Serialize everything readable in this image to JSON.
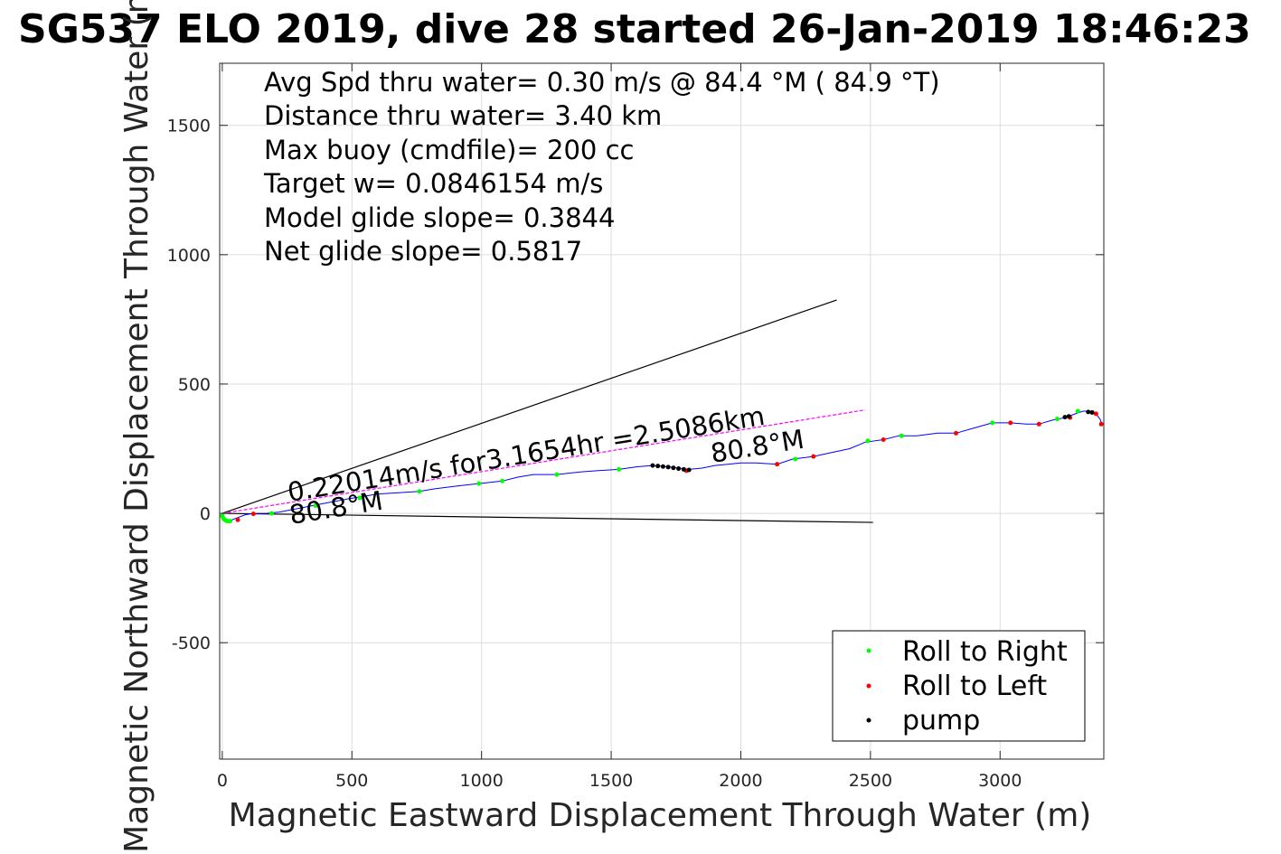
{
  "title": "SG537 ELO 2019, dive 28 started 26-Jan-2019 18:46:23",
  "chart_data": {
    "type": "line",
    "xlabel": "Magnetic Eastward Displacement Through Water (m)",
    "ylabel": "Magnetic Northward Displacement Through Water (m)",
    "xlim": [
      -10,
      3400
    ],
    "ylim": [
      -950,
      1740
    ],
    "xticks": [
      0,
      500,
      1000,
      1500,
      2000,
      2500,
      3000
    ],
    "xtick_labels": [
      "0",
      "500",
      "1000",
      "1500",
      "2000",
      "2500",
      "3000"
    ],
    "yticks": [
      -500,
      0,
      500,
      1000,
      1500
    ],
    "ytick_labels": [
      "-500",
      "0",
      "500",
      "1000",
      "1500"
    ],
    "grid": true,
    "legend_position": "bottom-right",
    "annotations": [
      "Avg Spd thru water=  0.30 m/s @  84.4 °M ( 84.9 °T)",
      "Distance thru water=  3.40 km",
      "Max buoy (cmdfile)= 200 cc",
      "Target w= 0.0846154 m/s",
      "Model glide slope= 0.3844",
      "Net glide slope= 0.5817"
    ],
    "current_label": "0.22014m/s for3.1654hr =2.5086km",
    "heading_labels": [
      "80.8°M",
      "80.8°M"
    ],
    "reference_lines": [
      {
        "name": "upper-heading-line",
        "x": [
          0,
          2370
        ],
        "y": [
          0,
          825
        ],
        "color": "#000000"
      },
      {
        "name": "lower-heading-line",
        "x": [
          0,
          2510
        ],
        "y": [
          0,
          -35
        ],
        "color": "#000000"
      },
      {
        "name": "current-vector-line",
        "x": [
          0,
          2480
        ],
        "y": [
          0,
          400
        ],
        "color": "#ff00ff"
      }
    ],
    "track": {
      "color": "#0000ff",
      "x": [
        0,
        10,
        25,
        50,
        90,
        120,
        170,
        220,
        300,
        400,
        480,
        540,
        600,
        680,
        760,
        820,
        900,
        990,
        1080,
        1140,
        1200,
        1290,
        1380,
        1450,
        1530,
        1600,
        1660,
        1720,
        1760,
        1800,
        1850,
        1900,
        1950,
        2000,
        2060,
        2140,
        2200,
        2280,
        2350,
        2420,
        2480,
        2550,
        2610,
        2680,
        2760,
        2830,
        2900,
        2970,
        3040,
        3100,
        3150,
        3200,
        3250,
        3290,
        3320,
        3350,
        3370,
        3385,
        3395
      ],
      "y": [
        -5,
        -25,
        -30,
        -20,
        -5,
        0,
        0,
        5,
        20,
        40,
        55,
        65,
        75,
        80,
        85,
        95,
        105,
        115,
        125,
        140,
        150,
        150,
        160,
        165,
        170,
        180,
        185,
        180,
        175,
        170,
        175,
        185,
        190,
        195,
        195,
        190,
        210,
        220,
        235,
        250,
        275,
        285,
        300,
        300,
        310,
        310,
        330,
        350,
        350,
        345,
        345,
        360,
        370,
        385,
        395,
        395,
        385,
        365,
        340
      ]
    },
    "series": [
      {
        "name": "Roll to Right",
        "color": "#00ff00",
        "x": [
          0,
          5,
          10,
          15,
          20,
          30,
          190,
          360,
          530,
          760,
          990,
          1080,
          1290,
          1530,
          2210,
          2490,
          2620,
          2970,
          3220,
          3300
        ],
        "y": [
          -10,
          -20,
          -25,
          -28,
          -30,
          -30,
          0,
          30,
          60,
          85,
          115,
          125,
          150,
          170,
          210,
          280,
          300,
          350,
          365,
          395
        ]
      },
      {
        "name": "Roll to Left",
        "color": "#ff0000",
        "x": [
          60,
          120,
          1790,
          2140,
          2280,
          2550,
          2830,
          3040,
          3150,
          3270,
          3370,
          3390
        ],
        "y": [
          -25,
          -2,
          165,
          190,
          220,
          285,
          310,
          350,
          345,
          370,
          385,
          345
        ]
      },
      {
        "name": "pump",
        "color": "#000000",
        "x": [
          1660,
          1680,
          1700,
          1720,
          1740,
          1760,
          1780,
          1800,
          3250,
          3265,
          3340,
          3355
        ],
        "y": [
          185,
          183,
          181,
          179,
          176,
          173,
          170,
          168,
          372,
          375,
          392,
          390
        ]
      }
    ]
  }
}
